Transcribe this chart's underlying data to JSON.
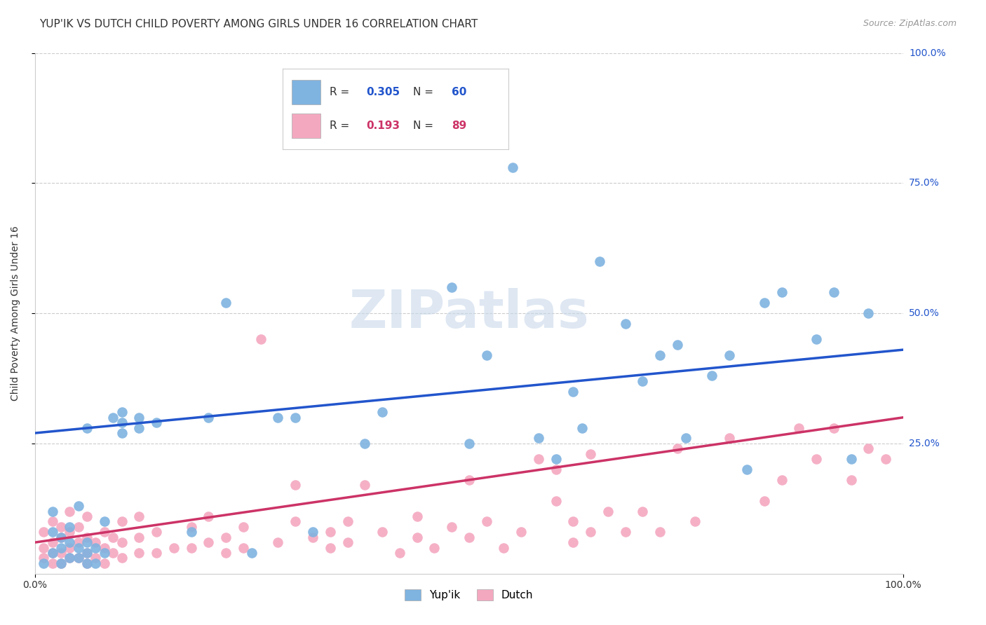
{
  "title": "YUP'IK VS DUTCH CHILD POVERTY AMONG GIRLS UNDER 16 CORRELATION CHART",
  "source": "Source: ZipAtlas.com",
  "ylabel": "Child Poverty Among Girls Under 16",
  "xlim": [
    0,
    1
  ],
  "ylim": [
    0,
    1
  ],
  "blue_color": "#7fb3e0",
  "pink_color": "#f4a8c0",
  "blue_line_color": "#2255cc",
  "pink_line_color": "#cc3366",
  "blue_r": "0.305",
  "blue_n": "60",
  "pink_r": "0.193",
  "pink_n": "89",
  "watermark": "ZIPatlas",
  "background_color": "#ffffff",
  "grid_color": "#cccccc",
  "blue_scatter": [
    [
      0.01,
      0.02
    ],
    [
      0.02,
      0.04
    ],
    [
      0.02,
      0.08
    ],
    [
      0.02,
      0.12
    ],
    [
      0.03,
      0.02
    ],
    [
      0.03,
      0.05
    ],
    [
      0.03,
      0.07
    ],
    [
      0.04,
      0.03
    ],
    [
      0.04,
      0.06
    ],
    [
      0.04,
      0.09
    ],
    [
      0.05,
      0.03
    ],
    [
      0.05,
      0.05
    ],
    [
      0.05,
      0.13
    ],
    [
      0.06,
      0.02
    ],
    [
      0.06,
      0.04
    ],
    [
      0.06,
      0.06
    ],
    [
      0.06,
      0.28
    ],
    [
      0.07,
      0.02
    ],
    [
      0.07,
      0.05
    ],
    [
      0.08,
      0.04
    ],
    [
      0.08,
      0.1
    ],
    [
      0.09,
      0.3
    ],
    [
      0.1,
      0.27
    ],
    [
      0.1,
      0.29
    ],
    [
      0.1,
      0.31
    ],
    [
      0.12,
      0.28
    ],
    [
      0.12,
      0.3
    ],
    [
      0.14,
      0.29
    ],
    [
      0.18,
      0.08
    ],
    [
      0.2,
      0.3
    ],
    [
      0.22,
      0.52
    ],
    [
      0.25,
      0.04
    ],
    [
      0.28,
      0.3
    ],
    [
      0.3,
      0.3
    ],
    [
      0.32,
      0.08
    ],
    [
      0.38,
      0.25
    ],
    [
      0.4,
      0.31
    ],
    [
      0.48,
      0.55
    ],
    [
      0.5,
      0.25
    ],
    [
      0.52,
      0.42
    ],
    [
      0.55,
      0.78
    ],
    [
      0.58,
      0.26
    ],
    [
      0.6,
      0.22
    ],
    [
      0.62,
      0.35
    ],
    [
      0.63,
      0.28
    ],
    [
      0.65,
      0.6
    ],
    [
      0.68,
      0.48
    ],
    [
      0.7,
      0.37
    ],
    [
      0.72,
      0.42
    ],
    [
      0.74,
      0.44
    ],
    [
      0.75,
      0.26
    ],
    [
      0.78,
      0.38
    ],
    [
      0.8,
      0.42
    ],
    [
      0.82,
      0.2
    ],
    [
      0.84,
      0.52
    ],
    [
      0.86,
      0.54
    ],
    [
      0.9,
      0.45
    ],
    [
      0.92,
      0.54
    ],
    [
      0.94,
      0.22
    ],
    [
      0.96,
      0.5
    ]
  ],
  "pink_scatter": [
    [
      0.01,
      0.03
    ],
    [
      0.01,
      0.05
    ],
    [
      0.01,
      0.08
    ],
    [
      0.02,
      0.02
    ],
    [
      0.02,
      0.04
    ],
    [
      0.02,
      0.06
    ],
    [
      0.02,
      0.1
    ],
    [
      0.03,
      0.02
    ],
    [
      0.03,
      0.04
    ],
    [
      0.03,
      0.07
    ],
    [
      0.03,
      0.09
    ],
    [
      0.04,
      0.03
    ],
    [
      0.04,
      0.05
    ],
    [
      0.04,
      0.08
    ],
    [
      0.04,
      0.12
    ],
    [
      0.05,
      0.03
    ],
    [
      0.05,
      0.06
    ],
    [
      0.05,
      0.09
    ],
    [
      0.06,
      0.02
    ],
    [
      0.06,
      0.04
    ],
    [
      0.06,
      0.07
    ],
    [
      0.06,
      0.11
    ],
    [
      0.07,
      0.03
    ],
    [
      0.07,
      0.06
    ],
    [
      0.08,
      0.02
    ],
    [
      0.08,
      0.05
    ],
    [
      0.08,
      0.08
    ],
    [
      0.09,
      0.04
    ],
    [
      0.09,
      0.07
    ],
    [
      0.1,
      0.03
    ],
    [
      0.1,
      0.06
    ],
    [
      0.1,
      0.1
    ],
    [
      0.12,
      0.04
    ],
    [
      0.12,
      0.07
    ],
    [
      0.12,
      0.11
    ],
    [
      0.14,
      0.04
    ],
    [
      0.14,
      0.08
    ],
    [
      0.16,
      0.05
    ],
    [
      0.18,
      0.05
    ],
    [
      0.18,
      0.09
    ],
    [
      0.2,
      0.06
    ],
    [
      0.2,
      0.11
    ],
    [
      0.22,
      0.04
    ],
    [
      0.22,
      0.07
    ],
    [
      0.24,
      0.05
    ],
    [
      0.24,
      0.09
    ],
    [
      0.26,
      0.45
    ],
    [
      0.28,
      0.06
    ],
    [
      0.3,
      0.1
    ],
    [
      0.3,
      0.17
    ],
    [
      0.32,
      0.07
    ],
    [
      0.34,
      0.05
    ],
    [
      0.34,
      0.08
    ],
    [
      0.36,
      0.06
    ],
    [
      0.36,
      0.1
    ],
    [
      0.38,
      0.17
    ],
    [
      0.4,
      0.08
    ],
    [
      0.42,
      0.04
    ],
    [
      0.44,
      0.07
    ],
    [
      0.44,
      0.11
    ],
    [
      0.46,
      0.05
    ],
    [
      0.48,
      0.09
    ],
    [
      0.5,
      0.07
    ],
    [
      0.5,
      0.18
    ],
    [
      0.52,
      0.1
    ],
    [
      0.54,
      0.05
    ],
    [
      0.56,
      0.08
    ],
    [
      0.58,
      0.22
    ],
    [
      0.6,
      0.14
    ],
    [
      0.6,
      0.2
    ],
    [
      0.62,
      0.06
    ],
    [
      0.62,
      0.1
    ],
    [
      0.64,
      0.08
    ],
    [
      0.64,
      0.23
    ],
    [
      0.66,
      0.12
    ],
    [
      0.68,
      0.08
    ],
    [
      0.7,
      0.12
    ],
    [
      0.72,
      0.08
    ],
    [
      0.74,
      0.24
    ],
    [
      0.76,
      0.1
    ],
    [
      0.8,
      0.26
    ],
    [
      0.84,
      0.14
    ],
    [
      0.86,
      0.18
    ],
    [
      0.88,
      0.28
    ],
    [
      0.9,
      0.22
    ],
    [
      0.92,
      0.28
    ],
    [
      0.94,
      0.18
    ],
    [
      0.96,
      0.24
    ],
    [
      0.98,
      0.22
    ]
  ],
  "blue_line_x": [
    0,
    1
  ],
  "blue_line_y": [
    0.27,
    0.43
  ],
  "pink_line_x": [
    0,
    1
  ],
  "pink_line_y": [
    0.06,
    0.3
  ],
  "title_fontsize": 11,
  "axis_fontsize": 10,
  "tick_fontsize": 10,
  "source_fontsize": 9,
  "legend_fontsize": 11,
  "bottom_legend_labels": [
    "Yup'ik",
    "Dutch"
  ]
}
